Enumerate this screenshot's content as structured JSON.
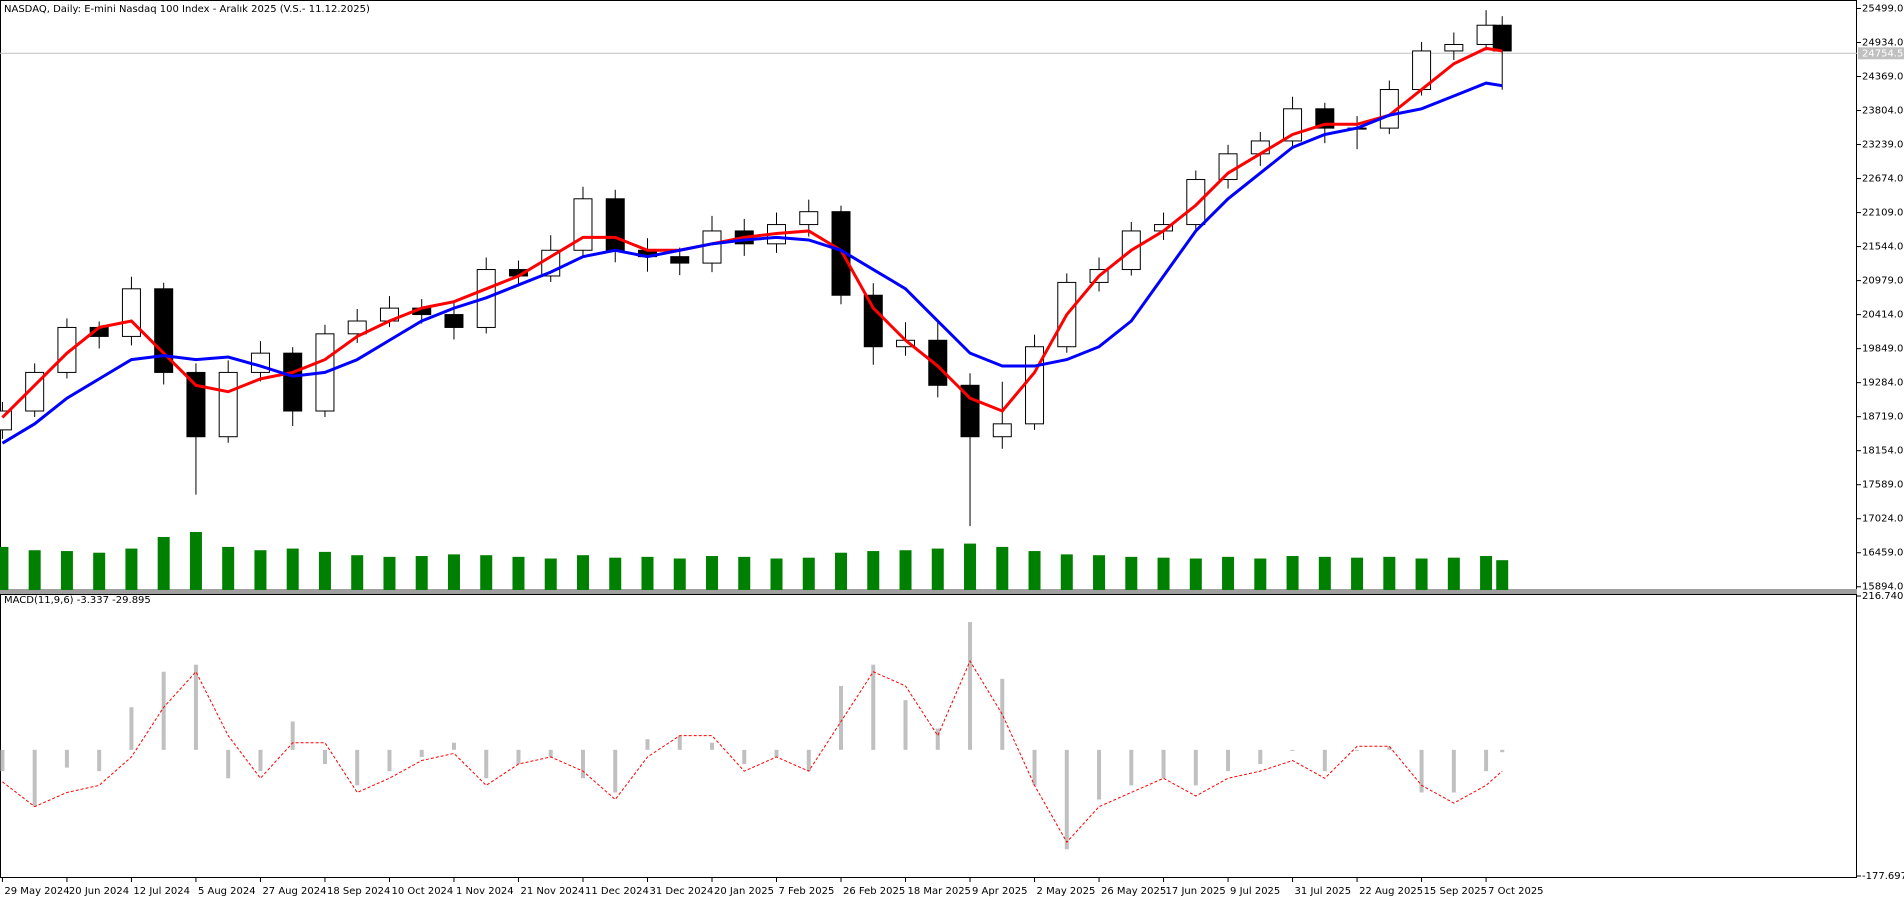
{
  "chart_data": [
    {
      "type": "candlestick",
      "title": "NASDAQ, Daily:  E-mini Nasdaq 100 Index - Aralık 2025 (V.S.- 11.12.2025)",
      "x": [
        0,
        8,
        16,
        24,
        32,
        40,
        48,
        56,
        64,
        72,
        80,
        88,
        96,
        104,
        112,
        120,
        128,
        136,
        144,
        152,
        160,
        168,
        176,
        184,
        192,
        200,
        208,
        216,
        224,
        232,
        240,
        248,
        256,
        264,
        272,
        280,
        288,
        296,
        304,
        312,
        320,
        328,
        336,
        344,
        352,
        360,
        368,
        372
      ],
      "open": [
        18500,
        18813,
        19454,
        20201,
        20052,
        20843,
        19454,
        18386,
        19454,
        19774,
        18813,
        20095,
        20308,
        20522,
        20415,
        20201,
        21163,
        21056,
        21483,
        22338,
        21483,
        21377,
        21270,
        21804,
        21590,
        21910,
        22124,
        20736,
        19881,
        19988,
        19240,
        18386,
        18600,
        19881,
        20949,
        21163,
        21804,
        21910,
        22658,
        23085,
        23299,
        23833,
        23512,
        23512,
        24153,
        24794,
        24901,
        25221
      ],
      "high": [
        18963,
        19604,
        20351,
        20301,
        21043,
        20943,
        19604,
        19654,
        19974,
        19874,
        20245,
        20508,
        20722,
        20672,
        20615,
        21363,
        21313,
        21733,
        22538,
        22488,
        21683,
        21527,
        22054,
        22004,
        22110,
        22324,
        22224,
        20936,
        20288,
        20288,
        19440,
        19300,
        20081,
        21099,
        21363,
        21954,
        22110,
        22808,
        23235,
        23449,
        24033,
        23933,
        23712,
        24303,
        24944,
        25101,
        25471,
        25371
      ],
      "low": [
        18350,
        18713,
        19354,
        19852,
        19902,
        19254,
        17425,
        18286,
        19304,
        18563,
        18713,
        19945,
        20208,
        20265,
        20001,
        20101,
        20906,
        20956,
        21383,
        21283,
        21127,
        21070,
        21120,
        21390,
        21440,
        21710,
        20586,
        19581,
        19731,
        19040,
        16900,
        18186,
        18500,
        19781,
        20799,
        21063,
        21654,
        21810,
        22508,
        22885,
        23199,
        23262,
        23162,
        23412,
        24053,
        24644,
        24801,
        24150
      ],
      "close": [
        18813,
        19454,
        20201,
        20052,
        20843,
        19454,
        18386,
        19454,
        19774,
        18813,
        20095,
        20308,
        20522,
        20415,
        20201,
        21163,
        21056,
        21483,
        22338,
        21483,
        21377,
        21270,
        21804,
        21590,
        21910,
        22124,
        20736,
        19881,
        19988,
        19240,
        18386,
        18600,
        19881,
        20949,
        21163,
        21804,
        21910,
        22658,
        23085,
        23299,
        23833,
        23512,
        23512,
        24153,
        24794,
        24901,
        25221,
        24794
      ],
      "candle_color": "#000000",
      "lines": [
        {
          "color": "#ff0000",
          "values": [
            18706,
            19240,
            19774,
            20201,
            20308,
            19774,
            19240,
            19133,
            19347,
            19454,
            19667,
            20052,
            20308,
            20522,
            20629,
            20843,
            21056,
            21377,
            21697,
            21697,
            21483,
            21483,
            21590,
            21697,
            21761,
            21804,
            21483,
            20522,
            19988,
            19560,
            19026,
            18813,
            19454,
            20415,
            21056,
            21483,
            21804,
            22231,
            22765,
            23085,
            23406,
            23576,
            23576,
            23726,
            24153,
            24581,
            24837,
            24794
          ]
        },
        {
          "color": "#0000ff",
          "values": [
            18279,
            18600,
            19026,
            19347,
            19667,
            19732,
            19667,
            19710,
            19560,
            19390,
            19454,
            19667,
            19988,
            20308,
            20522,
            20693,
            20907,
            21120,
            21377,
            21483,
            21377,
            21483,
            21590,
            21654,
            21697,
            21654,
            21483,
            21163,
            20843,
            20308,
            19774,
            19560,
            19560,
            19667,
            19881,
            20308,
            21056,
            21804,
            22338,
            22765,
            23192,
            23406,
            23512,
            23726,
            23833,
            24046,
            24260,
            24217
          ]
        }
      ],
      "volume": {
        "color": "#008000",
        "values": [
          520000,
          480000,
          470000,
          450000,
          500000,
          640000,
          700000,
          520000,
          480000,
          500000,
          460000,
          420000,
          400000,
          410000,
          430000,
          420000,
          400000,
          380000,
          420000,
          390000,
          400000,
          380000,
          410000,
          400000,
          380000,
          390000,
          450000,
          470000,
          480000,
          500000,
          560000,
          520000,
          470000,
          430000,
          420000,
          400000,
          390000,
          380000,
          400000,
          380000,
          410000,
          400000,
          390000,
          400000,
          380000,
          390000,
          410000,
          360000
        ]
      },
      "last_price": {
        "value": 24754.5,
        "label": "24754.50"
      },
      "xlim": [
        -0.6,
        460
      ],
      "xticks": [
        {
          "value": 0,
          "label": "29 May 2024"
        },
        {
          "value": 16,
          "label": "20 Jun 2024"
        },
        {
          "value": 32,
          "label": "12 Jul 2024"
        },
        {
          "value": 48,
          "label": "5 Aug 2024"
        },
        {
          "value": 64,
          "label": "27 Aug 2024"
        },
        {
          "value": 80,
          "label": "18 Sep 2024"
        },
        {
          "value": 96,
          "label": "10 Oct 2024"
        },
        {
          "value": 112,
          "label": "1 Nov 2024"
        },
        {
          "value": 128,
          "label": "21 Nov 2024"
        },
        {
          "value": 144,
          "label": "11 Dec 2024"
        },
        {
          "value": 160,
          "label": "31 Dec 2024"
        },
        {
          "value": 176,
          "label": "20 Jan 2025"
        },
        {
          "value": 192,
          "label": "7 Feb 2025"
        },
        {
          "value": 208,
          "label": "26 Feb 2025"
        },
        {
          "value": 224,
          "label": "18 Mar 2025"
        },
        {
          "value": 240,
          "label": "9 Apr 2025"
        },
        {
          "value": 256,
          "label": "2 May 2025"
        },
        {
          "value": 272,
          "label": "26 May 2025"
        },
        {
          "value": 288,
          "label": "17 Jun 2025"
        },
        {
          "value": 304,
          "label": "9 Jul 2025"
        },
        {
          "value": 320,
          "label": "31 Jul 2025"
        },
        {
          "value": 336,
          "label": "22 Aug 2025"
        },
        {
          "value": 352,
          "label": "15 Sep 2025"
        },
        {
          "value": 368,
          "label": "7 Oct 2025"
        }
      ],
      "ylim": [
        15840,
        25640
      ],
      "yticks": [
        {
          "value": 25499,
          "label": "25499.00"
        },
        {
          "value": 24934,
          "label": "24934.00"
        },
        {
          "value": 24369,
          "label": "24369.00"
        },
        {
          "value": 23804,
          "label": "23804.00"
        },
        {
          "value": 23239,
          "label": "23239.00"
        },
        {
          "value": 22674,
          "label": "22674.00"
        },
        {
          "value": 22109,
          "label": "22109.00"
        },
        {
          "value": 21544,
          "label": "21544.00"
        },
        {
          "value": 20979,
          "label": "20979.00"
        },
        {
          "value": 20414,
          "label": "20414.00"
        },
        {
          "value": 19849,
          "label": "19849.00"
        },
        {
          "value": 19284,
          "label": "19284.00"
        },
        {
          "value": 18719,
          "label": "18719.00"
        },
        {
          "value": 18154,
          "label": "18154.00"
        },
        {
          "value": 17589,
          "label": "17589.00"
        },
        {
          "value": 17024,
          "label": "17024.00"
        },
        {
          "value": 16459,
          "label": "16459.00"
        },
        {
          "value": 15894,
          "label": "15894.00"
        }
      ]
    },
    {
      "type": "macd",
      "title": "MACD(11,9,6) -3.337 -29.895",
      "x": [
        0,
        8,
        16,
        24,
        32,
        40,
        48,
        56,
        64,
        72,
        80,
        88,
        96,
        104,
        112,
        120,
        128,
        136,
        144,
        152,
        160,
        168,
        176,
        184,
        192,
        200,
        208,
        216,
        224,
        232,
        240,
        248,
        256,
        264,
        272,
        280,
        288,
        296,
        304,
        312,
        320,
        328,
        336,
        344,
        352,
        360,
        368,
        372
      ],
      "histogram": {
        "color": "#c0c0c0",
        "values": [
          -30,
          -80,
          -25,
          -30,
          60,
          110,
          120,
          -40,
          -30,
          40,
          -20,
          -50,
          -30,
          -10,
          10,
          -40,
          -20,
          -10,
          -40,
          -60,
          15,
          20,
          10,
          -20,
          -10,
          -30,
          90,
          120,
          70,
          30,
          180,
          100,
          -50,
          -140,
          -70,
          -50,
          -40,
          -50,
          -30,
          -20,
          0,
          -30,
          0,
          5,
          -60,
          -60,
          -30,
          -3.337
        ]
      },
      "signal": {
        "color": "#ff0000",
        "values": [
          -45,
          -80,
          -60,
          -50,
          -10,
          60,
          110,
          20,
          -40,
          10,
          10,
          -60,
          -40,
          -15,
          -5,
          -50,
          -20,
          -10,
          -30,
          -70,
          -10,
          20,
          20,
          -30,
          -10,
          -30,
          40,
          110,
          90,
          20,
          125,
          50,
          -50,
          -130,
          -80,
          -60,
          -40,
          -65,
          -40,
          -30,
          -15,
          -40,
          5,
          5,
          -50,
          -75,
          -50,
          -29.895
        ]
      },
      "xlim": [
        -0.6,
        460
      ],
      "ylim": [
        -177.697,
        216.74
      ],
      "yticks": [
        {
          "value": 216.74,
          "label": "216.740"
        },
        {
          "value": -177.697,
          "label": "-177.697"
        }
      ]
    }
  ]
}
